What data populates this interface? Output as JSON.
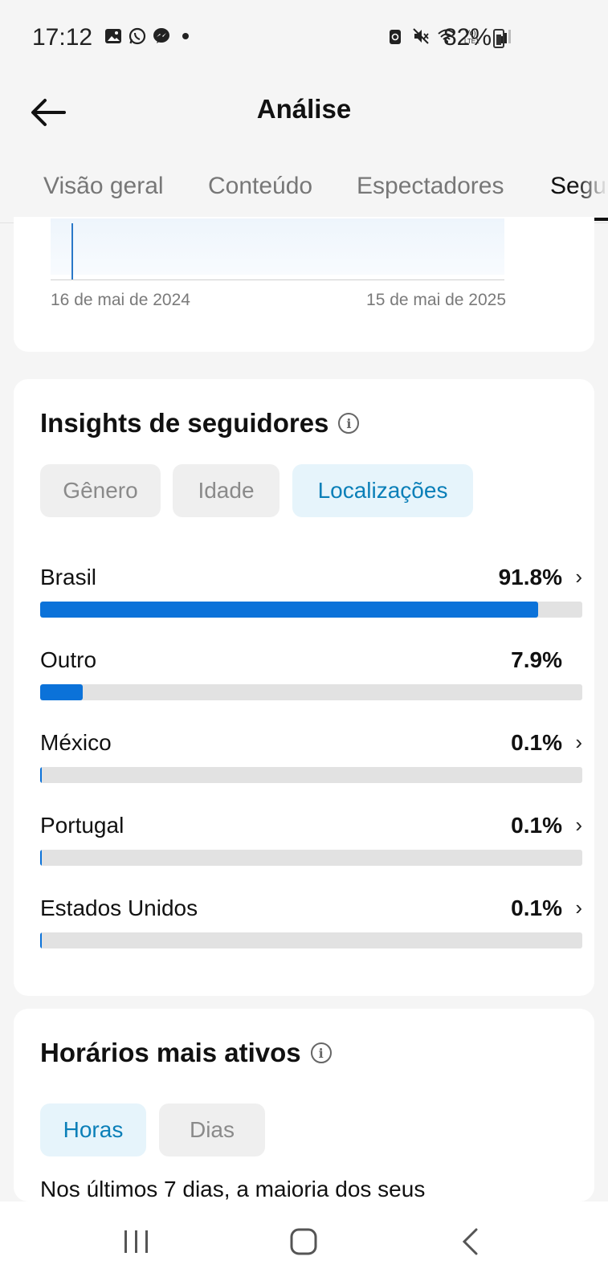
{
  "status_bar": {
    "time": "17:12",
    "battery": "82%",
    "left_icons": [
      "gallery-icon",
      "whatsapp-icon",
      "messenger-icon",
      "dot-icon"
    ],
    "right_icons": [
      "battery-saver-icon",
      "mute-icon",
      "wifi-icon",
      "volte-icon",
      "signal-icon"
    ]
  },
  "header": {
    "title": "Análise"
  },
  "tabs": [
    {
      "label": "Visão geral",
      "active": false
    },
    {
      "label": "Conteúdo",
      "active": false
    },
    {
      "label": "Espectadores",
      "active": false
    },
    {
      "label": "Seguidores",
      "active": true
    }
  ],
  "followers_chart": {
    "start_date": "16 de mai de 2024",
    "end_date": "15 de mai de 2025"
  },
  "insights": {
    "title": "Insights de seguidores",
    "filters": [
      {
        "label": "Gênero",
        "active": false
      },
      {
        "label": "Idade",
        "active": false
      },
      {
        "label": "Localizações",
        "active": true
      }
    ],
    "locations": [
      {
        "name": "Brasil",
        "percent": "91.8%",
        "value": 91.8,
        "has_chevron": true
      },
      {
        "name": "Outro",
        "percent": "7.9%",
        "value": 7.9,
        "has_chevron": false
      },
      {
        "name": "México",
        "percent": "0.1%",
        "value": 0.1,
        "has_chevron": true
      },
      {
        "name": "Portugal",
        "percent": "0.1%",
        "value": 0.1,
        "has_chevron": true
      },
      {
        "name": "Estados Unidos",
        "percent": "0.1%",
        "value": 0.1,
        "has_chevron": true
      }
    ]
  },
  "active_times": {
    "title": "Horários mais ativos",
    "filters": [
      {
        "label": "Horas",
        "active": true
      },
      {
        "label": "Dias",
        "active": false
      }
    ],
    "description": "Nos últimos 7 dias, a maioria dos seus"
  },
  "colors": {
    "accent": "#0b72d9",
    "pill_active_bg": "#e6f4fb",
    "pill_active_text": "#0a7fb8"
  }
}
